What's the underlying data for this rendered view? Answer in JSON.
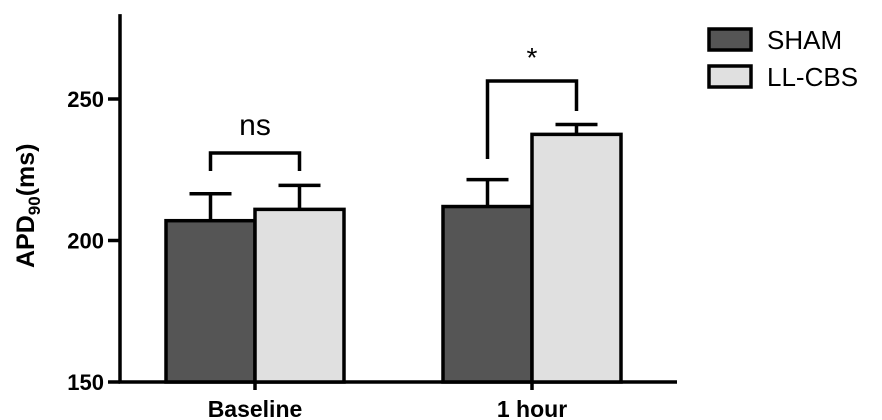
{
  "chart_data": {
    "type": "bar",
    "ylabel_main": "APD",
    "ylabel_sub": "90",
    "ylabel_suffix": "(ms)",
    "categories": [
      "Baseline",
      "1 hour"
    ],
    "series": [
      {
        "name": "SHAM",
        "values": [
          207,
          212
        ],
        "errors": [
          9.5,
          9.5
        ],
        "color": "#555555"
      },
      {
        "name": "LL-CBS",
        "values": [
          211,
          237.5
        ],
        "errors": [
          8.5,
          3.5
        ],
        "color": "#e0e0e0"
      }
    ],
    "ylim": [
      150,
      280
    ],
    "yticks": [
      150,
      200,
      250
    ],
    "significance": [
      {
        "category_index": 0,
        "label": "ns"
      },
      {
        "category_index": 1,
        "label": "*"
      }
    ],
    "legend_position": "top-right",
    "grid": false
  }
}
